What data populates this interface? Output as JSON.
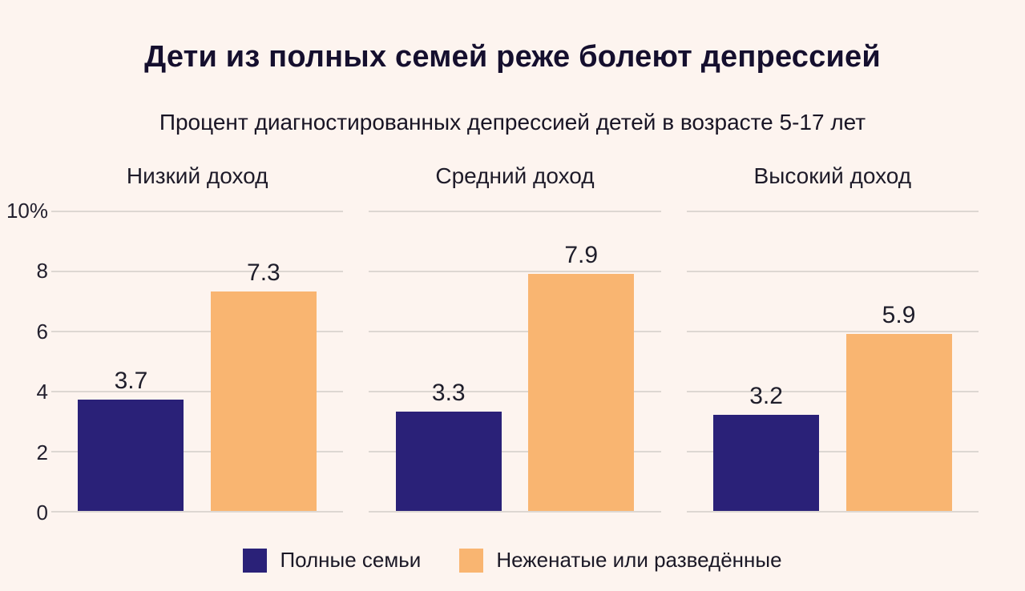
{
  "page": {
    "title": "Дети из полных семей реже болеют депрессией",
    "subtitle": "Процент диагностированных депрессией детей в возрасте 5-17 лет"
  },
  "y_axis_labels": [
    "10%",
    "8",
    "6",
    "4",
    "2",
    "0"
  ],
  "legend": {
    "items": [
      {
        "label": "Полные семьи",
        "color": "#2a2178"
      },
      {
        "label": "Неженатые или разведённые",
        "color": "#f9b571"
      }
    ]
  },
  "colors": {
    "background": "#fdf4ef",
    "bar_complete_families": "#2a2178",
    "bar_single_divorced": "#f9b571",
    "gridline": "#ddd7d2",
    "text": "#181424"
  },
  "chart_data": {
    "type": "bar",
    "title": "Дети из полных семей реже болеют депрессией",
    "subtitle": "Процент диагностированных депрессией детей в возрасте 5-17 лет",
    "categories": [
      "Низкий доход",
      "Средний доход",
      "Высокий доход"
    ],
    "series": [
      {
        "name": "Полные семьи",
        "color": "#2a2178",
        "values": [
          3.7,
          3.3,
          3.2
        ]
      },
      {
        "name": "Неженатые или разведённые",
        "color": "#f9b571",
        "values": [
          7.3,
          7.9,
          5.9
        ]
      }
    ],
    "xlabel": "",
    "ylabel": "",
    "ylim": [
      0,
      10
    ],
    "yticks": [
      0,
      2,
      4,
      6,
      8,
      10
    ],
    "ytick_top_label": "10%",
    "grid": true,
    "legend_position": "bottom"
  }
}
